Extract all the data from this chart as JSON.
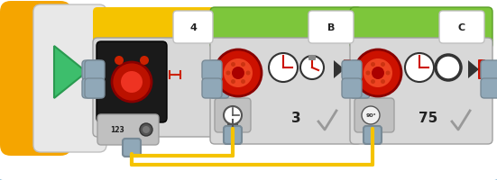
{
  "bg_color": "#c5dff0",
  "outer_border_color": "#7ab0d4",
  "inner_bg": "#ffffff",
  "wire_color": "#f5c300",
  "orange_color": "#f5a500",
  "yellow_color": "#f5c300",
  "green_color": "#7dc63b",
  "green_dark": "#5a9e28",
  "gray_body": "#d8d8d8",
  "gray_mid": "#c0c0c0",
  "gray_dark": "#a0a0a0",
  "gray_light": "#e8e8e8",
  "connector_color": "#90a8b8",
  "black_sensor": "#1a1a1a",
  "red_motor": "#cc1100",
  "red_bright": "#ee3311",
  "white": "#ffffff",
  "text_dark": "#222222",
  "figsize": [
    5.51,
    2.01
  ],
  "dpi": 100
}
